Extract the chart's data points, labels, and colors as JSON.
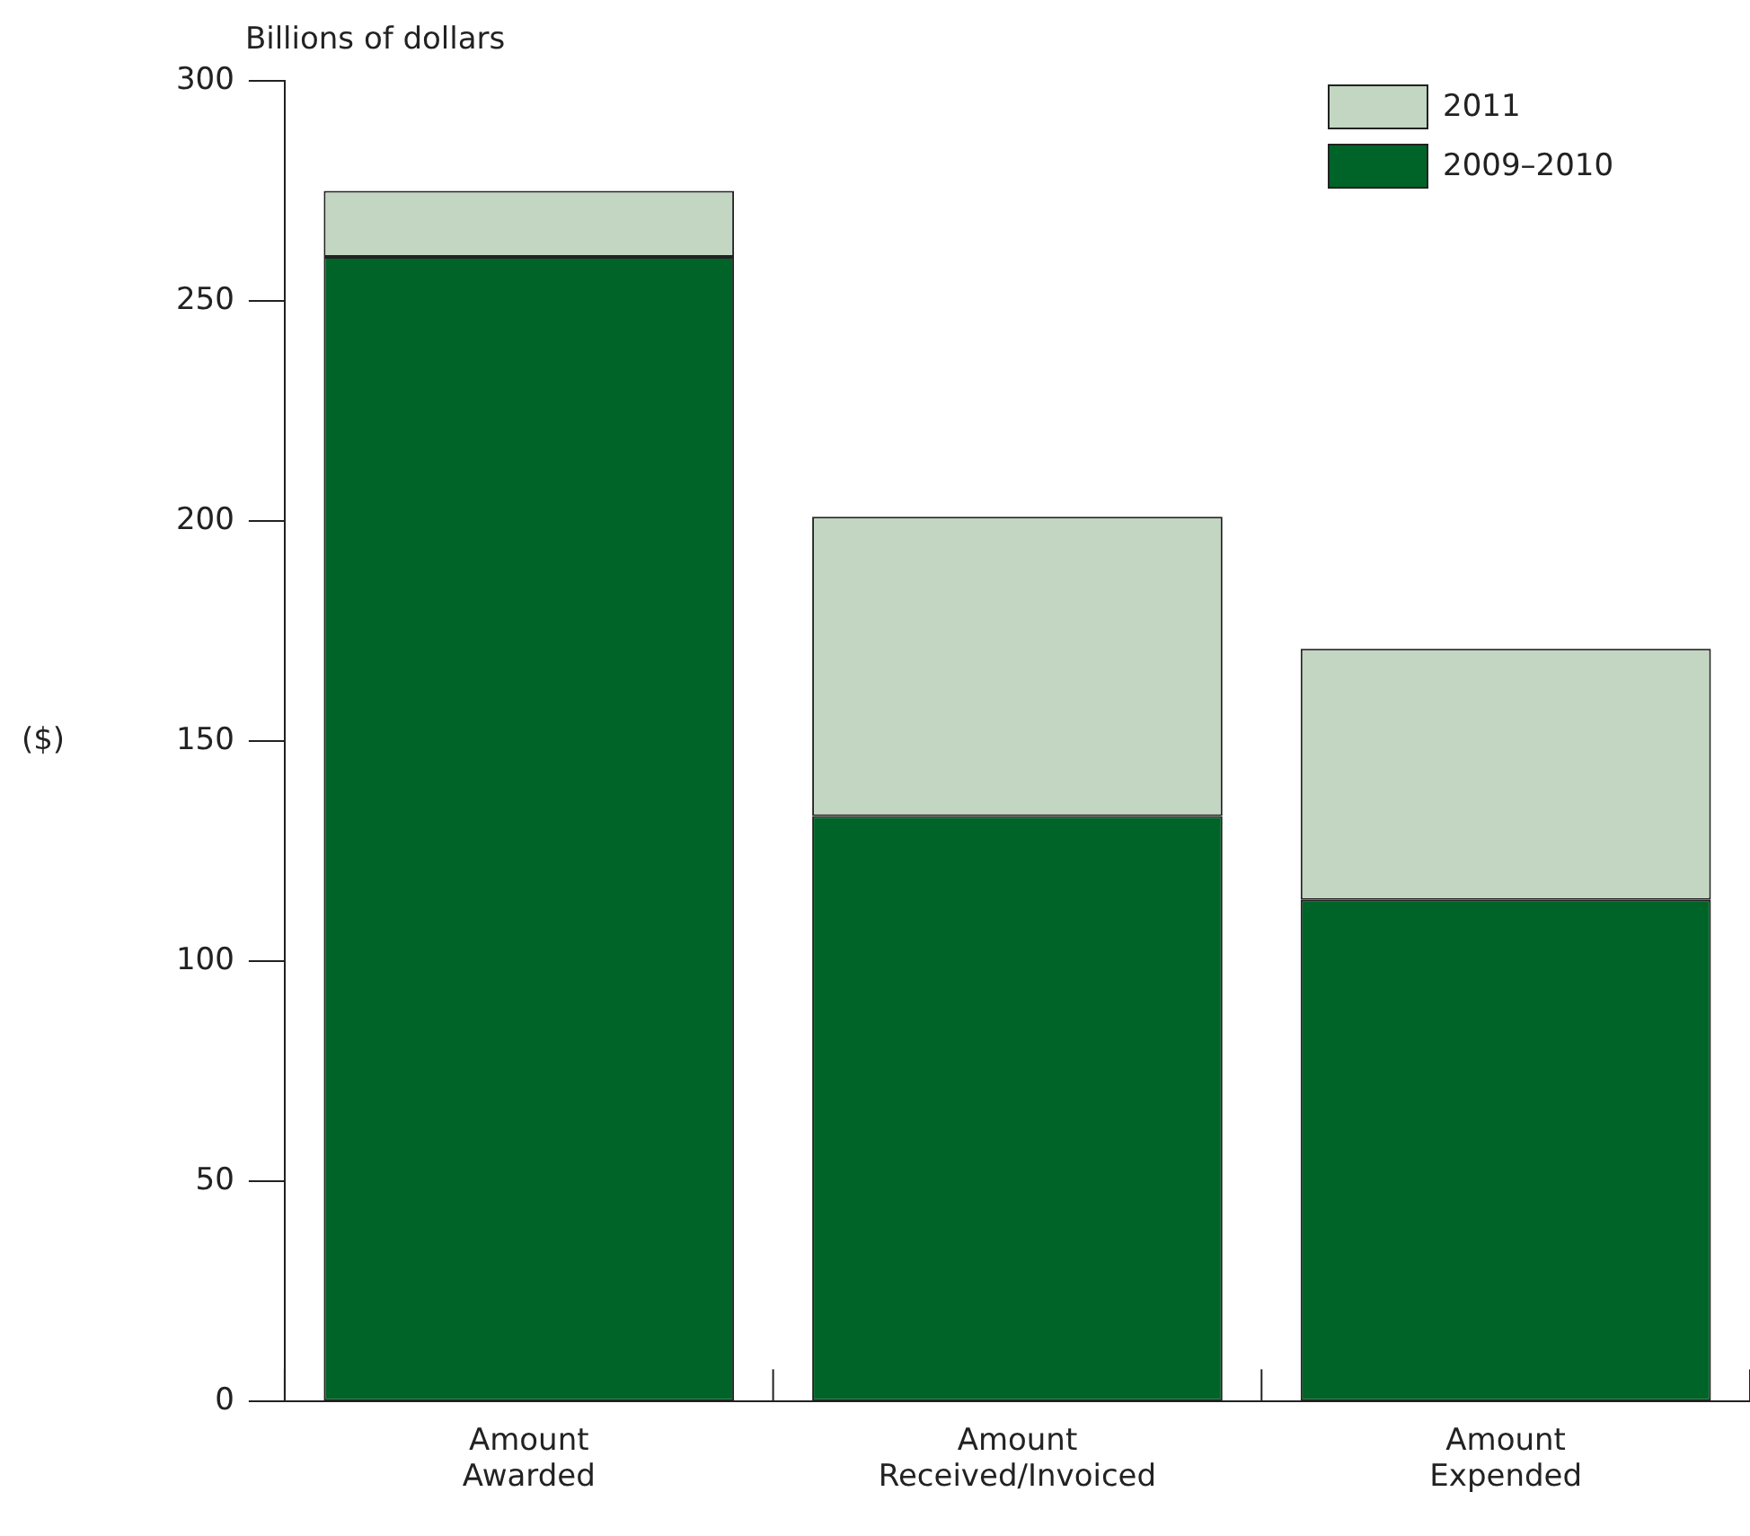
{
  "chart_data": {
    "type": "bar",
    "subtitle": "Billions of dollars",
    "ylabel": "($)",
    "categories": [
      "Amount Awarded",
      "Amount Received/Invoiced",
      "Amount Expended"
    ],
    "series": [
      {
        "name": "2009–2010",
        "color": "#006428",
        "values": [
          260,
          133,
          114
        ]
      },
      {
        "name": "2011",
        "color": "#c2d6c2",
        "values": [
          15,
          68,
          57
        ]
      }
    ],
    "stacked": true,
    "ylim": [
      0,
      300
    ],
    "yticks": [
      0,
      50,
      100,
      150,
      200,
      250,
      300
    ],
    "grid": false,
    "legend": "top right"
  }
}
